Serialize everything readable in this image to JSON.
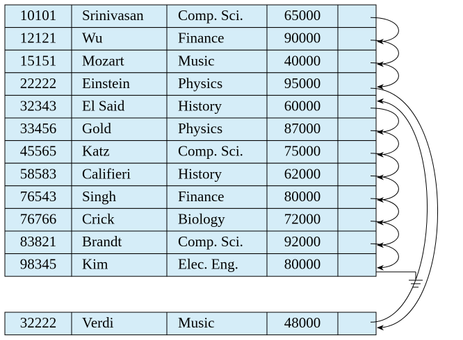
{
  "records": [
    [
      "10101",
      "Srinivasan",
      "Comp. Sci.",
      "65000"
    ],
    [
      "12121",
      "Wu",
      "Finance",
      "90000"
    ],
    [
      "15151",
      "Mozart",
      "Music",
      "40000"
    ],
    [
      "22222",
      "Einstein",
      "Physics",
      "95000"
    ],
    [
      "32343",
      "El Said",
      "History",
      "60000"
    ],
    [
      "33456",
      "Gold",
      "Physics",
      "87000"
    ],
    [
      "45565",
      "Katz",
      "Comp. Sci.",
      "75000"
    ],
    [
      "58583",
      "Califieri",
      "History",
      "62000"
    ],
    [
      "76543",
      "Singh",
      "Finance",
      "80000"
    ],
    [
      "76766",
      "Crick",
      "Biology",
      "72000"
    ],
    [
      "83821",
      "Brandt",
      "Comp. Sci.",
      "92000"
    ],
    [
      "98345",
      "Kim",
      "Elec. Eng.",
      "80000"
    ]
  ],
  "inserted": [
    "32222",
    "Verdi",
    "Music",
    "48000"
  ]
}
